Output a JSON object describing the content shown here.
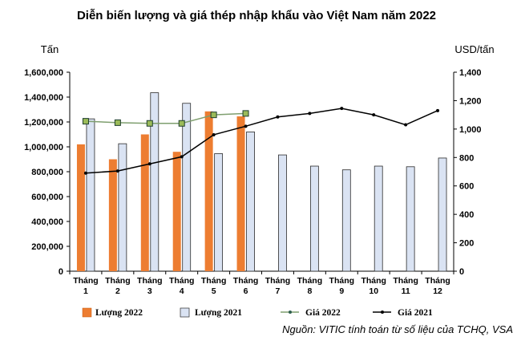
{
  "chart_data": {
    "type": "bar",
    "title": "Diễn biến lượng và giá thép nhập khẩu vào Việt Nam năm 2022",
    "ylabel_left": "Tấn",
    "ylabel_right": "USD/tấn",
    "source": "Nguồn: VITIC tính toán từ số liệu của TCHQ, VSA",
    "categories": [
      [
        "Tháng",
        "1"
      ],
      [
        "Tháng",
        "2"
      ],
      [
        "Tháng",
        "3"
      ],
      [
        "Tháng",
        "4"
      ],
      [
        "Tháng",
        "5"
      ],
      [
        "Tháng",
        "6"
      ],
      [
        "Tháng",
        "7"
      ],
      [
        "Tháng",
        "8"
      ],
      [
        "Tháng",
        "9"
      ],
      [
        "Tháng",
        "10"
      ],
      [
        "Tháng",
        "11"
      ],
      [
        "Tháng",
        "12"
      ]
    ],
    "ylim_left": [
      0,
      1600000
    ],
    "yticks_left": [
      "0",
      "200,000",
      "400,000",
      "600,000",
      "800,000",
      "1,000,000",
      "1,200,000",
      "1,400,000",
      "1,600,000"
    ],
    "ylim_right": [
      0,
      1400
    ],
    "yticks_right": [
      "0",
      "200",
      "400",
      "600",
      "800",
      "1,000",
      "1,200",
      "1,400"
    ],
    "series": [
      {
        "name": "Lượng 2022",
        "kind": "bar",
        "axis": "left",
        "color": "#ed7d31",
        "values": [
          1020000,
          900000,
          1100000,
          960000,
          1285000,
          1245000,
          null,
          null,
          null,
          null,
          null,
          null
        ]
      },
      {
        "name": "Lượng 2021",
        "kind": "bar",
        "axis": "left",
        "color": "#dae3f3",
        "values": [
          1225000,
          1025000,
          1435000,
          1350000,
          945000,
          1120000,
          935000,
          845000,
          815000,
          845000,
          840000,
          910000
        ]
      },
      {
        "name": "Giá 2022",
        "kind": "line",
        "axis": "right",
        "color": "#7f9f6f",
        "values": [
          1055,
          1045,
          1040,
          1040,
          1100,
          1110,
          null,
          null,
          null,
          null,
          null,
          null
        ]
      },
      {
        "name": "Giá 2021",
        "kind": "line",
        "axis": "right",
        "color": "#000000",
        "values": [
          690,
          705,
          755,
          805,
          960,
          1020,
          1085,
          1110,
          1145,
          1100,
          1030,
          1130
        ]
      }
    ]
  }
}
